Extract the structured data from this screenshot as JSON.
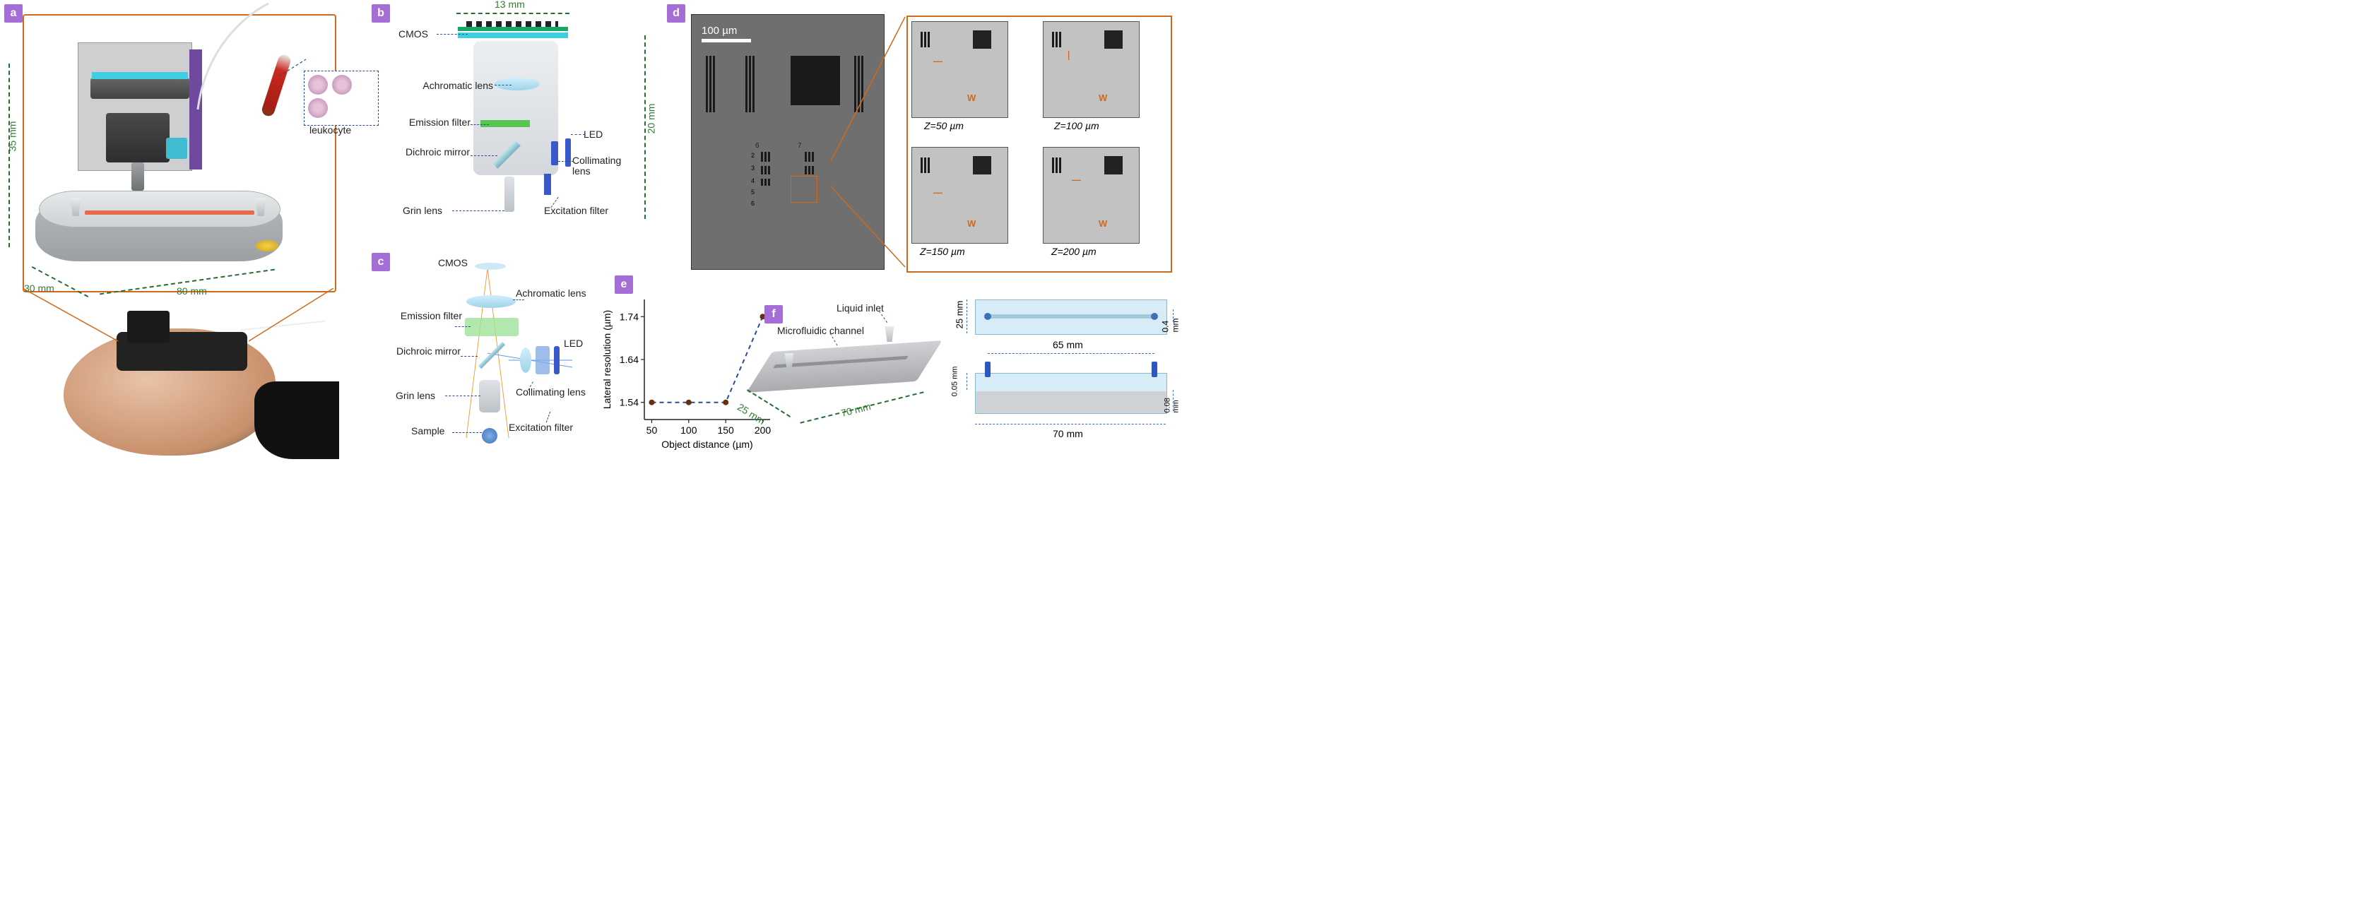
{
  "colors": {
    "panel_label_bg": "#a46ed6",
    "panel_label_fg": "#ffffff",
    "orange_border": "#d06a1a",
    "dim_green": "#2e7d32",
    "leader_blue": "#2a4c94",
    "chart_point": "#6a2d10",
    "micrograph_bg": "#6f6f6f",
    "z_bg": "#c2c2c2",
    "channel": "#e86a4c",
    "cyan": "#40cfe0",
    "green_filter": "#58c451",
    "blue": "#3859c7"
  },
  "panel_labels": {
    "a": "a",
    "b": "b",
    "c": "c",
    "d": "d",
    "e": "e",
    "f": "f"
  },
  "panel_a": {
    "dims": {
      "height": "35 mm",
      "width": "30 mm",
      "length": "80 mm"
    },
    "leukocyte_label": "leukocyte"
  },
  "panel_b": {
    "dims": {
      "width": "13 mm",
      "height": "20 mm"
    },
    "parts": {
      "cmos": "CMOS",
      "achromatic": "Achromatic lens",
      "emission": "Emission filter",
      "dichroic": "Dichroic mirror",
      "grin": "Grin lens",
      "led": "LED",
      "collimating": "Collimating lens",
      "excitation": "Excitation filter"
    }
  },
  "panel_c": {
    "parts": {
      "cmos": "CMOS",
      "achromatic": "Achromatic lens",
      "emission": "Emission filter",
      "dichroic": "Dichroic mirror",
      "grin": "Grin lens",
      "sample": "Sample",
      "led": "LED",
      "collimating": "Collimating lens",
      "excitation": "Excitation filter"
    }
  },
  "panel_d": {
    "scale_bar": "100 µm",
    "z_labels": {
      "z50": "Z=50 µm",
      "z100": "Z=100 µm",
      "z150": "Z=150 µm",
      "z200": "Z=200 µm"
    }
  },
  "panel_e": {
    "type": "line",
    "xlabel": "Object distance (µm)",
    "ylabel": "Lateral resolution (µm)",
    "x_ticks": [
      50,
      100,
      150,
      200
    ],
    "y_ticks": [
      1.54,
      1.64,
      1.74
    ],
    "xlim": [
      40,
      210
    ],
    "ylim": [
      1.5,
      1.78
    ],
    "points": [
      {
        "x": 50,
        "y": 1.54
      },
      {
        "x": 100,
        "y": 1.54
      },
      {
        "x": 150,
        "y": 1.54
      },
      {
        "x": 200,
        "y": 1.74
      }
    ],
    "line_color": "#2a4c94",
    "line_dash": "6 5",
    "point_color": "#6a2d10",
    "point_radius": 4,
    "axis_fontsize": 14,
    "background_color": "#ffffff"
  },
  "panel_f": {
    "labels": {
      "inlet": "Liquid inlet",
      "channel": "Microfluidic channel"
    },
    "dims3d": {
      "length": "70 mm",
      "width": "25 mm"
    },
    "topview": {
      "width": "25 mm",
      "channel_width": "0.4 mm",
      "channel_length": "65 mm"
    },
    "sideview": {
      "channel_h": "0.05 mm",
      "substrate_h": "0.08 mm",
      "length": "70 mm"
    }
  }
}
